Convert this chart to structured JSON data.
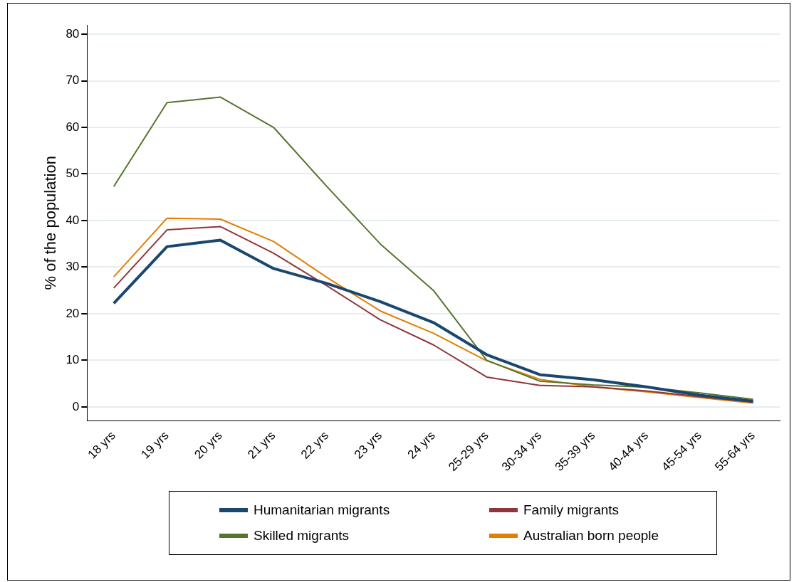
{
  "chart_data": {
    "type": "line",
    "ylabel": "% of the population",
    "categories": [
      "18 yrs",
      "19 yrs",
      "20 yrs",
      "21 yrs",
      "22 yrs",
      "23 yrs",
      "24 yrs",
      "25-29 yrs",
      "30-34 yrs",
      "35-39 yrs",
      "40-44 yrs",
      "45-54 yrs",
      "55-64 yrs"
    ],
    "series": [
      {
        "name": "Humanitarian migrants",
        "color": "#1a476f",
        "values": [
          22.2,
          34.4,
          35.8,
          29.7,
          26.5,
          22.6,
          18.1,
          11.2,
          6.9,
          5.8,
          4.3,
          2.5,
          1.2
        ]
      },
      {
        "name": "Family migrants",
        "color": "#90353b",
        "values": [
          25.5,
          38,
          38.7,
          33,
          26,
          18.7,
          13.3,
          6.4,
          4.6,
          4.3,
          3.4,
          2.2,
          1.0
        ]
      },
      {
        "name": "Skilled migrants",
        "color": "#55752f",
        "values": [
          47.3,
          65.3,
          66.5,
          60,
          47.3,
          35,
          25,
          10,
          5.5,
          4.7,
          4.2,
          3,
          1.6
        ]
      },
      {
        "name": "Australian born people",
        "color": "#e37e00",
        "values": [
          27.9,
          40.5,
          40.3,
          35.5,
          27.8,
          20.6,
          15.8,
          9.9,
          5.9,
          4.3,
          3.2,
          2,
          0.8
        ]
      }
    ],
    "ylim": [
      -3,
      82
    ],
    "yticks": [
      0,
      10,
      20,
      30,
      40,
      50,
      60,
      70,
      80
    ],
    "grid": "y",
    "legend": "bottom",
    "marker": "none",
    "line_style": "solid"
  }
}
